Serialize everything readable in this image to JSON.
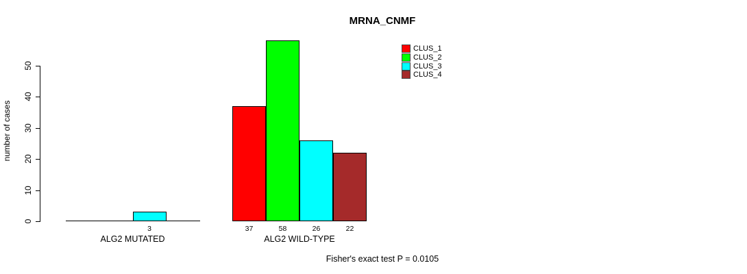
{
  "title": "MRNA_CNMF",
  "footnote": "Fisher's exact test P = 0.0105",
  "chart_data": {
    "type": "bar",
    "title": "MRNA_CNMF",
    "xlabel": "",
    "ylabel": "number of cases",
    "ylim": [
      0,
      50
    ],
    "yticks": [
      0,
      10,
      20,
      30,
      40,
      50
    ],
    "grid": false,
    "legend_position": "top-right",
    "categories": [
      "ALG2 MUTATED",
      "ALG2 WILD-TYPE"
    ],
    "series": [
      {
        "name": "CLUS_1",
        "color": "#FF0000",
        "values": [
          0,
          37
        ]
      },
      {
        "name": "CLUS_2",
        "color": "#00FF00",
        "values": [
          0,
          58
        ]
      },
      {
        "name": "CLUS_3",
        "color": "#00FFFF",
        "values": [
          3,
          26
        ]
      },
      {
        "name": "CLUS_4",
        "color": "#A52A2A",
        "values": [
          0,
          22
        ]
      }
    ],
    "visible_bar_value_labels": [
      "3",
      "37",
      "58",
      "26",
      "22"
    ],
    "annotation": "Fisher's exact test P = 0.0105"
  }
}
